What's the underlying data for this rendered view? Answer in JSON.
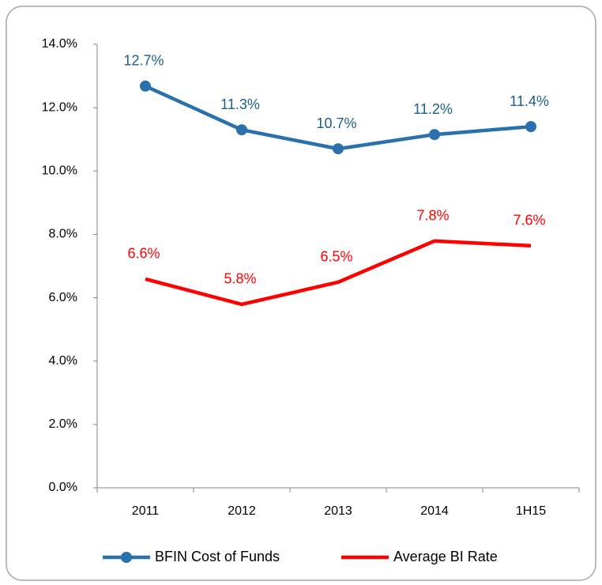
{
  "chart_data": {
    "type": "line",
    "categories": [
      "2011",
      "2012",
      "2013",
      "2014",
      "1H15"
    ],
    "series": [
      {
        "name": "BFIN Cost of Funds",
        "color": "#2a70ad",
        "label_color": "#1b5f8c",
        "marker": true,
        "values": [
          12.68,
          11.3,
          10.7,
          11.15,
          11.4
        ],
        "value_labels": [
          "12.7%",
          "11.3%",
          "10.7%",
          "11.2%",
          "11.4%"
        ]
      },
      {
        "name": "Average BI Rate",
        "color": "#ff0000",
        "label_color": "#ff0000",
        "marker": false,
        "values": [
          6.59,
          5.79,
          6.49,
          7.79,
          7.64
        ],
        "value_labels": [
          "6.6%",
          "5.8%",
          "6.5%",
          "7.8%",
          "7.6%"
        ]
      }
    ],
    "ylim": [
      0,
      14
    ],
    "yticks": [
      {
        "value": 0,
        "label": "0.0%"
      },
      {
        "value": 2,
        "label": "2.0%"
      },
      {
        "value": 4,
        "label": "4.0%"
      },
      {
        "value": 6,
        "label": "6.0%"
      },
      {
        "value": 8,
        "label": "8.0%"
      },
      {
        "value": 10,
        "label": "10.0%"
      },
      {
        "value": 12,
        "label": "12.0%"
      },
      {
        "value": 14,
        "label": "14.0%"
      }
    ],
    "grid": false,
    "legend": "bottom"
  }
}
